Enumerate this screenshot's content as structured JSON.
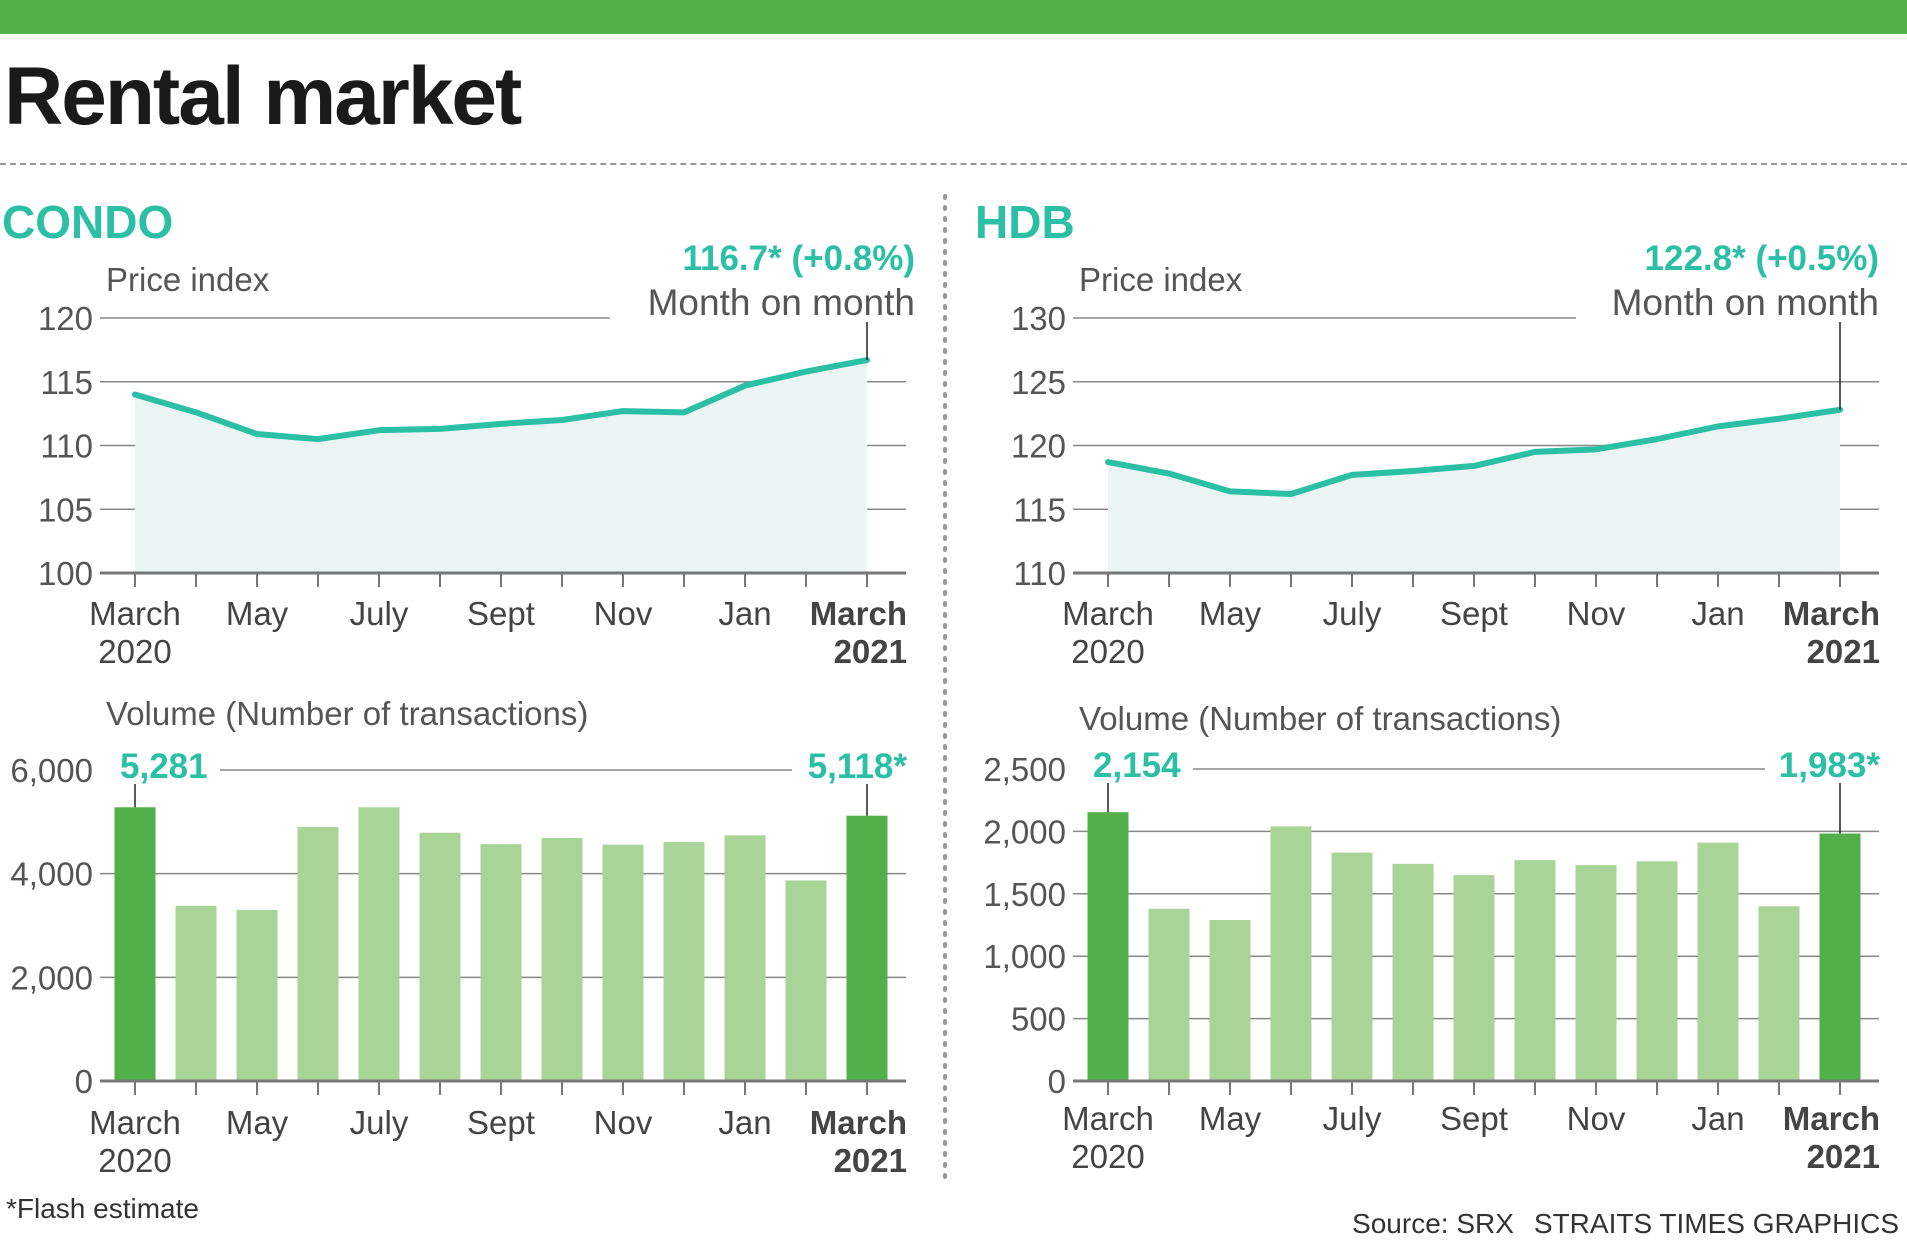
{
  "title": "Rental market",
  "colors": {
    "accent_teal": "#2bbfa6",
    "brand_green": "#52b04a",
    "highlight_bar": "#52b04a",
    "regular_bar": "#a8d597",
    "area_fill": "#eaf5f4",
    "grid": "#888888"
  },
  "footnote": "*Flash estimate",
  "source": "Source: SRX",
  "credit": "STRAITS TIMES GRAPHICS",
  "chart_data": [
    {
      "id": "condo-price",
      "section": "CONDO",
      "type": "area",
      "title": "Price index",
      "ylim": [
        100,
        120
      ],
      "yticks": [
        100,
        105,
        110,
        115,
        120
      ],
      "x_tick_labels": [
        {
          "line1": "March",
          "line2": "2020",
          "bold": false
        },
        {
          "line1": "May",
          "line2": "",
          "bold": false
        },
        {
          "line1": "July",
          "line2": "",
          "bold": false
        },
        {
          "line1": "Sept",
          "line2": "",
          "bold": false
        },
        {
          "line1": "Nov",
          "line2": "",
          "bold": false
        },
        {
          "line1": "Jan",
          "line2": "",
          "bold": false
        },
        {
          "line1": "March",
          "line2": "2021",
          "bold": true
        }
      ],
      "values": [
        114.0,
        112.6,
        110.9,
        110.5,
        111.2,
        111.3,
        111.7,
        112.0,
        112.7,
        112.6,
        114.7,
        115.8,
        116.7
      ],
      "annotation_value": "116.7* (+0.8%)",
      "annotation_label": "Month on month"
    },
    {
      "id": "hdb-price",
      "section": "HDB",
      "type": "area",
      "title": "Price index",
      "ylim": [
        110,
        130
      ],
      "yticks": [
        110,
        115,
        120,
        125,
        130
      ],
      "x_tick_labels": [
        {
          "line1": "March",
          "line2": "2020",
          "bold": false
        },
        {
          "line1": "May",
          "line2": "",
          "bold": false
        },
        {
          "line1": "July",
          "line2": "",
          "bold": false
        },
        {
          "line1": "Sept",
          "line2": "",
          "bold": false
        },
        {
          "line1": "Nov",
          "line2": "",
          "bold": false
        },
        {
          "line1": "Jan",
          "line2": "",
          "bold": false
        },
        {
          "line1": "March",
          "line2": "2021",
          "bold": true
        }
      ],
      "values": [
        118.7,
        117.8,
        116.4,
        116.2,
        117.7,
        118.0,
        118.4,
        119.5,
        119.7,
        120.5,
        121.5,
        122.1,
        122.8
      ],
      "annotation_value": "122.8* (+0.5%)",
      "annotation_label": "Month on month"
    },
    {
      "id": "condo-volume",
      "section": "CONDO",
      "type": "bar",
      "title": "Volume (Number of transactions)",
      "ylim": [
        0,
        6000
      ],
      "yticks": [
        0,
        2000,
        4000,
        6000
      ],
      "ytick_labels": [
        "0",
        "2,000",
        "4,000",
        "6,000"
      ],
      "x_tick_labels": [
        {
          "line1": "March",
          "line2": "2020",
          "bold": false
        },
        {
          "line1": "May",
          "line2": "",
          "bold": false
        },
        {
          "line1": "July",
          "line2": "",
          "bold": false
        },
        {
          "line1": "Sept",
          "line2": "",
          "bold": false
        },
        {
          "line1": "Nov",
          "line2": "",
          "bold": false
        },
        {
          "line1": "Jan",
          "line2": "",
          "bold": false
        },
        {
          "line1": "March",
          "line2": "2021",
          "bold": true
        }
      ],
      "values": [
        5281,
        3380,
        3300,
        4900,
        5280,
        4790,
        4570,
        4690,
        4560,
        4610,
        4740,
        3870,
        5118
      ],
      "highlight": [
        0,
        12
      ],
      "start_label": "5,281",
      "end_label": "5,118*"
    },
    {
      "id": "hdb-volume",
      "section": "HDB",
      "type": "bar",
      "title": "Volume (Number of transactions)",
      "ylim": [
        0,
        2500
      ],
      "yticks": [
        0,
        500,
        1000,
        1500,
        2000,
        2500
      ],
      "ytick_labels": [
        "0",
        "500",
        "1,000",
        "1,500",
        "2,000",
        "2,500"
      ],
      "x_tick_labels": [
        {
          "line1": "March",
          "line2": "2020",
          "bold": false
        },
        {
          "line1": "May",
          "line2": "",
          "bold": false
        },
        {
          "line1": "July",
          "line2": "",
          "bold": false
        },
        {
          "line1": "Sept",
          "line2": "",
          "bold": false
        },
        {
          "line1": "Nov",
          "line2": "",
          "bold": false
        },
        {
          "line1": "Jan",
          "line2": "",
          "bold": false
        },
        {
          "line1": "March",
          "line2": "2021",
          "bold": true
        }
      ],
      "values": [
        2154,
        1380,
        1290,
        2040,
        1830,
        1740,
        1650,
        1770,
        1730,
        1760,
        1910,
        1400,
        1983
      ],
      "highlight": [
        0,
        12
      ],
      "start_label": "2,154",
      "end_label": "1,983*"
    }
  ]
}
